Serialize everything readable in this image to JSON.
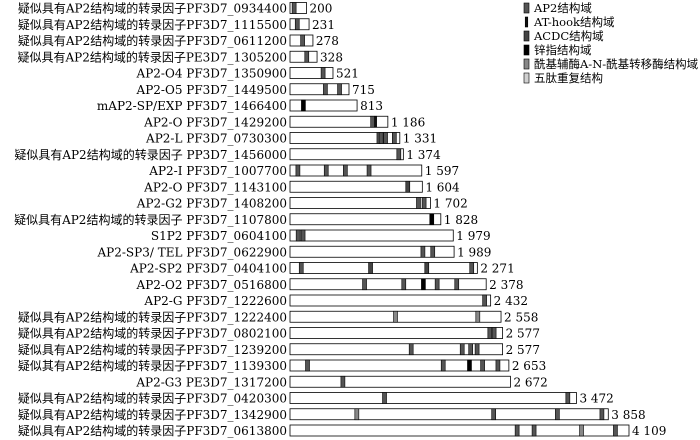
{
  "legend": [
    {
      "label": "AP2结构域",
      "color": "#555555",
      "icon": "dark-gray-block-icon"
    },
    {
      "label": "AT-hook结构域",
      "color": "#111111",
      "icon": "thin-black-bar-icon"
    },
    {
      "label": "ACDC结构域",
      "color": "#444444",
      "icon": "gray-block-icon"
    },
    {
      "label": "锌指结构域",
      "color": "#000000",
      "icon": "black-block-icon"
    },
    {
      "label": "酰基辅酶A-N-酰基转移酶结构域",
      "color": "#888888",
      "icon": "striped-block-icon"
    },
    {
      "label": "五肽重复结构",
      "color": "#d0d0d0",
      "icon": "light-block-icon"
    }
  ],
  "proteins": [
    {
      "label": "疑似具有AP2结构域的转录因子PF3D7_0934400",
      "length": "200",
      "domains": [
        {
          "type": 0,
          "pos": 0.25
        }
      ]
    },
    {
      "label": "疑似具有AP2结构域的转录因子PF3D7_1115500",
      "length": "231",
      "domains": [
        {
          "type": 0,
          "pos": 0.38
        }
      ]
    },
    {
      "label": "疑似具有AP2结构域的转录因子PF3D7_0611200",
      "length": "278",
      "domains": [
        {
          "type": 0,
          "pos": 0.55
        }
      ]
    },
    {
      "label": "疑似具有AP2结构域的转录因子PE3D7_1305200",
      "length": "328",
      "domains": [
        {
          "type": 0,
          "pos": 0.62
        }
      ]
    },
    {
      "label": "AP2-O4 PF3D7_1350900",
      "length": "521",
      "domains": [
        {
          "type": 0,
          "pos": 0.77
        }
      ]
    },
    {
      "label": "AP2-O5 PF3D7_1449500",
      "length": "715",
      "domains": [
        {
          "type": 0,
          "pos": 0.6
        },
        {
          "type": 0,
          "pos": 0.84
        }
      ]
    },
    {
      "label": "mAP2-SP/EXP PF3D7_1466400",
      "length": "813",
      "domains": [
        {
          "type": 3,
          "pos": 0.2
        }
      ]
    },
    {
      "label": "AP2-O PF3D7_1429200",
      "length": "1 186",
      "domains": [
        {
          "type": 0,
          "pos": 0.845
        },
        {
          "type": 1,
          "pos": 0.875
        }
      ]
    },
    {
      "label": "AP2-L PF3D7_0730300",
      "length": "1 331",
      "domains": [
        {
          "type": 0,
          "pos": 0.81
        },
        {
          "type": 0,
          "pos": 0.83
        },
        {
          "type": 0,
          "pos": 0.87
        },
        {
          "type": 0,
          "pos": 0.95
        }
      ]
    },
    {
      "label": "疑似具有AP2结构域的转录因子 PP3D7_1456000",
      "length": "1 374",
      "domains": [
        {
          "type": 0,
          "pos": 0.96
        }
      ]
    },
    {
      "label": "AP2-I PF3D7_1007700",
      "length": "1 597",
      "domains": [
        {
          "type": 0,
          "pos": 0.06
        },
        {
          "type": 0,
          "pos": 0.275
        },
        {
          "type": 0,
          "pos": 0.42
        },
        {
          "type": 0,
          "pos": 0.6
        }
      ]
    },
    {
      "label": "AP2-O PF3D7_1143100",
      "length": "1 604",
      "domains": [
        {
          "type": 2,
          "pos": 0.89
        }
      ]
    },
    {
      "label": "AP2-G2 PF3D7_1408200",
      "length": "1 702",
      "domains": [
        {
          "type": 0,
          "pos": 0.915
        },
        {
          "type": 0,
          "pos": 0.955
        }
      ]
    },
    {
      "label": "疑似具有AP2结构域的转录因子 PF3D7_1107800",
      "length": "1 828",
      "domains": [
        {
          "type": 3,
          "pos": 0.94
        }
      ]
    },
    {
      "label": "S1P2 PF3D7_0604100",
      "length": "1 979",
      "domains": [
        {
          "type": 0,
          "pos": 0.05
        },
        {
          "type": 0,
          "pos": 0.08
        }
      ]
    },
    {
      "label": "AP2-SP3/ TEL PF3D7_0622900",
      "length": "1 989",
      "domains": [
        {
          "type": 0,
          "pos": 0.81
        },
        {
          "type": 0,
          "pos": 0.87
        }
      ]
    },
    {
      "label": "AP2-SP2 PF3D7_0404100",
      "length": "2 271",
      "domains": [
        {
          "type": 0,
          "pos": 0.06
        },
        {
          "type": 2,
          "pos": 0.43
        },
        {
          "type": 2,
          "pos": 0.73
        },
        {
          "type": 0,
          "pos": 0.97
        }
      ]
    },
    {
      "label": "AP2-O2 PF3D7_0516800",
      "length": "2 378",
      "domains": [
        {
          "type": 0,
          "pos": 0.38
        },
        {
          "type": 0,
          "pos": 0.58
        },
        {
          "type": 3,
          "pos": 0.68
        },
        {
          "type": 0,
          "pos": 0.75
        },
        {
          "type": 0,
          "pos": 0.85
        }
      ]
    },
    {
      "label": "AP2-G PF3D7_1222600",
      "length": "2 432",
      "domains": [
        {
          "type": 0,
          "pos": 0.97
        }
      ]
    },
    {
      "label": "疑似具有AP2结构域的转录因子PF3D7_1222400",
      "length": "2 558",
      "domains": [
        {
          "type": 4,
          "pos": 0.5
        },
        {
          "type": 4,
          "pos": 0.89
        }
      ]
    },
    {
      "label": "疑似具有AP2结构域的转录因子PF3D7_0802100",
      "length": "2 577",
      "domains": [
        {
          "type": 0,
          "pos": 0.94
        },
        {
          "type": 0,
          "pos": 0.96
        }
      ]
    },
    {
      "label": "疑似具有AP2结构域的转录因子PF3D7_1239200",
      "length": "2 577",
      "domains": [
        {
          "type": 0,
          "pos": 0.57
        },
        {
          "type": 0,
          "pos": 0.81
        },
        {
          "type": 0,
          "pos": 0.85
        },
        {
          "type": 0,
          "pos": 0.88
        }
      ]
    },
    {
      "label": "疑似其有AP2结构域的转录因子PF3D7_1139300",
      "length": "2 653",
      "domains": [
        {
          "type": 0,
          "pos": 0.08
        },
        {
          "type": 0,
          "pos": 0.7
        },
        {
          "type": 3,
          "pos": 0.82
        },
        {
          "type": 0,
          "pos": 0.88
        },
        {
          "type": 0,
          "pos": 0.95
        }
      ]
    },
    {
      "label": "AP2-G3 PE3D7_1317200",
      "length": "2 672",
      "domains": [
        {
          "type": 0,
          "pos": 0.24
        }
      ]
    },
    {
      "label": "疑似具有AP2结构域的转录因子PF3D7_0420300",
      "length": "3 472",
      "domains": [
        {
          "type": 0,
          "pos": 0.33
        },
        {
          "type": 0,
          "pos": 0.97
        }
      ]
    },
    {
      "label": "疑似具有AP2结构域的转录因子PF3D7_1342900",
      "length": "3 858",
      "domains": [
        {
          "type": 4,
          "pos": 0.21
        },
        {
          "type": 0,
          "pos": 0.64
        },
        {
          "type": 0,
          "pos": 0.84
        },
        {
          "type": 0,
          "pos": 0.98
        }
      ]
    },
    {
      "label": "疑似具有AP2结构域的转录因子PF3D7_0613800",
      "length": "4 109",
      "domains": [
        {
          "type": 0,
          "pos": 0.67
        },
        {
          "type": 0,
          "pos": 0.72
        },
        {
          "type": 4,
          "pos": 0.86
        },
        {
          "type": 0,
          "pos": 0.96
        }
      ]
    }
  ]
}
